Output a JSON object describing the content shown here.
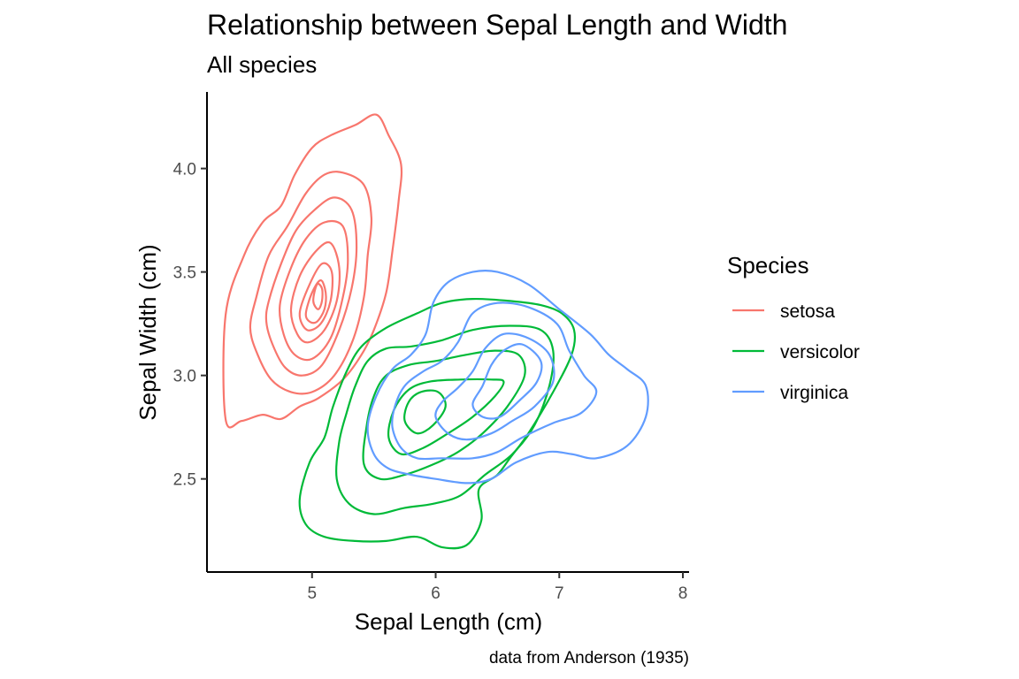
{
  "chart_data": {
    "type": "contour",
    "title": "Relationship between Sepal Length and Width",
    "subtitle": "All species",
    "xlabel": "Sepal Length (cm)",
    "ylabel": "Sepal Width (cm)",
    "caption": "data from Anderson (1935)",
    "xlim": [
      4.15,
      8.05
    ],
    "ylim": [
      2.05,
      4.37
    ],
    "x_ticks": [
      5,
      6,
      7,
      8
    ],
    "x_tick_labels": [
      "5",
      "6",
      "7",
      "8"
    ],
    "y_ticks": [
      2.5,
      3.0,
      3.5,
      4.0
    ],
    "y_tick_labels": [
      "2.5",
      "3.0",
      "3.5",
      "4.0"
    ],
    "grid": false,
    "legend": {
      "title": "Species",
      "position": "right"
    },
    "series": [
      {
        "name": "setosa",
        "color": "#F8766D",
        "contours": [
          [
            [
              4.3,
              3.29
            ],
            [
              4.45,
              3.58
            ],
            [
              4.6,
              3.74
            ],
            [
              4.75,
              3.82
            ],
            [
              4.86,
              3.97
            ],
            [
              5.0,
              4.1
            ],
            [
              5.15,
              4.16
            ],
            [
              5.35,
              4.21
            ],
            [
              5.52,
              4.26
            ],
            [
              5.62,
              4.16
            ],
            [
              5.72,
              4.02
            ],
            [
              5.7,
              3.84
            ],
            [
              5.65,
              3.6
            ],
            [
              5.6,
              3.4
            ],
            [
              5.5,
              3.22
            ],
            [
              5.4,
              3.1
            ],
            [
              5.25,
              2.98
            ],
            [
              5.05,
              2.89
            ],
            [
              4.9,
              2.85
            ],
            [
              4.75,
              2.79
            ],
            [
              4.6,
              2.81
            ],
            [
              4.43,
              2.78
            ],
            [
              4.3,
              2.79
            ]
          ],
          [
            [
              4.55,
              3.38
            ],
            [
              4.65,
              3.58
            ],
            [
              4.8,
              3.72
            ],
            [
              4.95,
              3.88
            ],
            [
              5.1,
              3.97
            ],
            [
              5.25,
              3.98
            ],
            [
              5.42,
              3.92
            ],
            [
              5.48,
              3.76
            ],
            [
              5.45,
              3.58
            ],
            [
              5.42,
              3.38
            ],
            [
              5.33,
              3.17
            ],
            [
              5.18,
              3.0
            ],
            [
              5.0,
              2.92
            ],
            [
              4.83,
              2.92
            ],
            [
              4.67,
              2.98
            ],
            [
              4.56,
              3.1
            ],
            [
              4.5,
              3.23
            ]
          ],
          [
            [
              4.65,
              3.36
            ],
            [
              4.75,
              3.54
            ],
            [
              4.87,
              3.7
            ],
            [
              5.02,
              3.8
            ],
            [
              5.18,
              3.86
            ],
            [
              5.32,
              3.8
            ],
            [
              5.36,
              3.62
            ],
            [
              5.32,
              3.42
            ],
            [
              5.22,
              3.22
            ],
            [
              5.08,
              3.05
            ],
            [
              4.92,
              3.0
            ],
            [
              4.78,
              3.04
            ],
            [
              4.68,
              3.15
            ],
            [
              4.63,
              3.26
            ]
          ],
          [
            [
              4.74,
              3.34
            ],
            [
              4.83,
              3.52
            ],
            [
              4.95,
              3.66
            ],
            [
              5.1,
              3.74
            ],
            [
              5.25,
              3.72
            ],
            [
              5.29,
              3.56
            ],
            [
              5.25,
              3.38
            ],
            [
              5.15,
              3.18
            ],
            [
              5.0,
              3.08
            ],
            [
              4.86,
              3.1
            ],
            [
              4.77,
              3.2
            ]
          ],
          [
            [
              4.83,
              3.32
            ],
            [
              4.9,
              3.48
            ],
            [
              5.03,
              3.6
            ],
            [
              5.15,
              3.64
            ],
            [
              5.22,
              3.52
            ],
            [
              5.2,
              3.36
            ],
            [
              5.1,
              3.22
            ],
            [
              4.97,
              3.16
            ],
            [
              4.88,
              3.2
            ]
          ],
          [
            [
              4.9,
              3.3
            ],
            [
              4.98,
              3.44
            ],
            [
              5.08,
              3.54
            ],
            [
              5.16,
              3.5
            ],
            [
              5.15,
              3.36
            ],
            [
              5.07,
              3.25
            ],
            [
              4.96,
              3.22
            ]
          ],
          [
            [
              4.95,
              3.3
            ],
            [
              5.0,
              3.4
            ],
            [
              5.07,
              3.46
            ],
            [
              5.11,
              3.4
            ],
            [
              5.1,
              3.32
            ],
            [
              5.04,
              3.26
            ],
            [
              4.98,
              3.26
            ]
          ],
          [
            [
              5.01,
              3.36
            ],
            [
              5.04,
              3.44
            ],
            [
              5.08,
              3.42
            ],
            [
              5.08,
              3.36
            ],
            [
              5.05,
              3.32
            ]
          ]
        ]
      },
      {
        "name": "versicolor",
        "color": "#00BA38",
        "contours": [
          [
            [
              4.9,
              2.4
            ],
            [
              4.95,
              2.28
            ],
            [
              5.1,
              2.22
            ],
            [
              5.35,
              2.2
            ],
            [
              5.6,
              2.2
            ],
            [
              5.85,
              2.22
            ],
            [
              6.05,
              2.17
            ],
            [
              6.25,
              2.18
            ],
            [
              6.37,
              2.3
            ],
            [
              6.35,
              2.45
            ],
            [
              6.5,
              2.52
            ],
            [
              6.6,
              2.6
            ],
            [
              6.75,
              2.72
            ],
            [
              6.95,
              2.92
            ],
            [
              7.1,
              3.1
            ],
            [
              7.12,
              3.22
            ],
            [
              7.02,
              3.3
            ],
            [
              6.85,
              3.34
            ],
            [
              6.6,
              3.36
            ],
            [
              6.3,
              3.37
            ],
            [
              6.05,
              3.35
            ],
            [
              5.85,
              3.3
            ],
            [
              5.6,
              3.23
            ],
            [
              5.4,
              3.14
            ],
            [
              5.28,
              3.02
            ],
            [
              5.17,
              2.85
            ],
            [
              5.1,
              2.7
            ],
            [
              4.98,
              2.58
            ]
          ],
          [
            [
              5.2,
              2.5
            ],
            [
              5.3,
              2.38
            ],
            [
              5.5,
              2.33
            ],
            [
              5.75,
              2.36
            ],
            [
              5.98,
              2.38
            ],
            [
              6.2,
              2.42
            ],
            [
              6.4,
              2.52
            ],
            [
              6.62,
              2.62
            ],
            [
              6.8,
              2.76
            ],
            [
              6.92,
              2.95
            ],
            [
              6.95,
              3.12
            ],
            [
              6.85,
              3.22
            ],
            [
              6.6,
              3.24
            ],
            [
              6.3,
              3.22
            ],
            [
              6.05,
              3.17
            ],
            [
              5.8,
              3.14
            ],
            [
              5.6,
              3.13
            ],
            [
              5.45,
              3.07
            ],
            [
              5.35,
              2.95
            ],
            [
              5.28,
              2.82
            ],
            [
              5.22,
              2.68
            ]
          ],
          [
            [
              5.42,
              2.57
            ],
            [
              5.55,
              2.5
            ],
            [
              5.75,
              2.52
            ],
            [
              5.98,
              2.57
            ],
            [
              6.18,
              2.63
            ],
            [
              6.38,
              2.72
            ],
            [
              6.58,
              2.85
            ],
            [
              6.72,
              3.0
            ],
            [
              6.67,
              3.1
            ],
            [
              6.48,
              3.12
            ],
            [
              6.25,
              3.1
            ],
            [
              6.0,
              3.07
            ],
            [
              5.78,
              3.05
            ],
            [
              5.6,
              3.0
            ],
            [
              5.5,
              2.9
            ],
            [
              5.44,
              2.75
            ]
          ],
          [
            [
              5.62,
              2.7
            ],
            [
              5.72,
              2.62
            ],
            [
              5.9,
              2.65
            ],
            [
              6.1,
              2.72
            ],
            [
              6.3,
              2.8
            ],
            [
              6.48,
              2.9
            ],
            [
              6.55,
              2.97
            ],
            [
              6.45,
              2.98
            ],
            [
              6.2,
              2.98
            ],
            [
              5.95,
              2.97
            ],
            [
              5.78,
              2.93
            ],
            [
              5.66,
              2.83
            ]
          ],
          [
            [
              5.75,
              2.78
            ],
            [
              5.85,
              2.72
            ],
            [
              5.98,
              2.76
            ],
            [
              6.08,
              2.85
            ],
            [
              6.02,
              2.92
            ],
            [
              5.88,
              2.92
            ],
            [
              5.78,
              2.87
            ]
          ]
        ]
      },
      {
        "name": "virginica",
        "color": "#619CFF",
        "contours": [
          [
            [
              5.45,
              2.75
            ],
            [
              5.5,
              2.62
            ],
            [
              5.62,
              2.55
            ],
            [
              5.8,
              2.52
            ],
            [
              6.0,
              2.5
            ],
            [
              6.25,
              2.48
            ],
            [
              6.45,
              2.5
            ],
            [
              6.65,
              2.58
            ],
            [
              6.9,
              2.63
            ],
            [
              7.1,
              2.62
            ],
            [
              7.3,
              2.6
            ],
            [
              7.55,
              2.66
            ],
            [
              7.7,
              2.8
            ],
            [
              7.7,
              2.95
            ],
            [
              7.55,
              3.03
            ],
            [
              7.4,
              3.1
            ],
            [
              7.25,
              3.2
            ],
            [
              7.0,
              3.32
            ],
            [
              6.75,
              3.44
            ],
            [
              6.5,
              3.5
            ],
            [
              6.3,
              3.5
            ],
            [
              6.1,
              3.45
            ],
            [
              5.98,
              3.35
            ],
            [
              5.92,
              3.2
            ],
            [
              5.8,
              3.1
            ],
            [
              5.65,
              3.03
            ],
            [
              5.52,
              2.9
            ]
          ],
          [
            [
              5.65,
              2.75
            ],
            [
              5.72,
              2.65
            ],
            [
              5.85,
              2.6
            ],
            [
              6.05,
              2.6
            ],
            [
              6.3,
              2.6
            ],
            [
              6.5,
              2.63
            ],
            [
              6.7,
              2.7
            ],
            [
              6.95,
              2.77
            ],
            [
              7.18,
              2.82
            ],
            [
              7.3,
              2.92
            ],
            [
              7.2,
              3.0
            ],
            [
              7.08,
              3.12
            ],
            [
              6.98,
              3.25
            ],
            [
              6.75,
              3.33
            ],
            [
              6.5,
              3.35
            ],
            [
              6.3,
              3.3
            ],
            [
              6.18,
              3.16
            ],
            [
              6.05,
              3.07
            ],
            [
              5.9,
              3.02
            ],
            [
              5.75,
              2.95
            ],
            [
              5.67,
              2.85
            ]
          ],
          [
            [
              6.0,
              2.8
            ],
            [
              6.1,
              2.72
            ],
            [
              6.25,
              2.69
            ],
            [
              6.45,
              2.72
            ],
            [
              6.62,
              2.78
            ],
            [
              6.8,
              2.85
            ],
            [
              6.95,
              2.97
            ],
            [
              6.92,
              3.1
            ],
            [
              6.75,
              3.18
            ],
            [
              6.55,
              3.2
            ],
            [
              6.4,
              3.13
            ],
            [
              6.3,
              3.02
            ],
            [
              6.18,
              2.94
            ],
            [
              6.05,
              2.87
            ]
          ],
          [
            [
              6.3,
              2.86
            ],
            [
              6.38,
              2.95
            ],
            [
              6.45,
              3.05
            ],
            [
              6.55,
              3.12
            ],
            [
              6.7,
              3.15
            ],
            [
              6.85,
              3.07
            ],
            [
              6.82,
              2.97
            ],
            [
              6.68,
              2.88
            ],
            [
              6.52,
              2.8
            ],
            [
              6.38,
              2.8
            ]
          ]
        ]
      }
    ]
  }
}
